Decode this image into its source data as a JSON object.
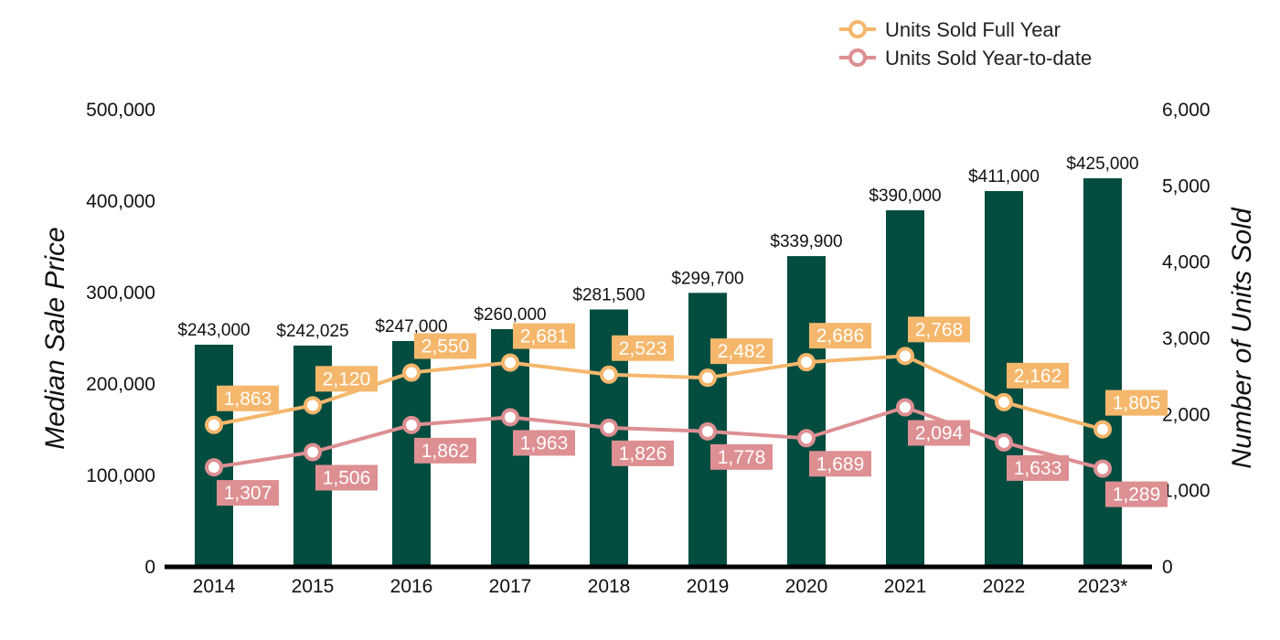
{
  "chart_data": {
    "type": "bar",
    "categories": [
      "2014",
      "2015",
      "2016",
      "2017",
      "2018",
      "2019",
      "2020",
      "2021",
      "2022",
      "2023*"
    ],
    "ylabel": "Median Sale Price",
    "y2label": "Number of Units Sold",
    "ylim": [
      0,
      500000
    ],
    "y2lim": [
      0,
      6000
    ],
    "yticks": [
      "0",
      "100,000",
      "200,000",
      "300,000",
      "400,000",
      "500,000"
    ],
    "y2ticks": [
      "0",
      "1,000",
      "2,000",
      "3,000",
      "4,000",
      "5,000",
      "6,000"
    ],
    "bars": {
      "values": [
        243000,
        242025,
        247000,
        260000,
        281500,
        299700,
        339900,
        390000,
        411000,
        425000
      ],
      "labels": [
        "$243,000",
        "$242,025",
        "$247,000",
        "$260,000",
        "$281,500",
        "$299,700",
        "$339,900",
        "$390,000",
        "$411,000",
        "$425,000"
      ],
      "color": "#024c40"
    },
    "series": [
      {
        "name": "Units Sold Full Year",
        "type": "line",
        "axis": "right",
        "color": "#f5b76c",
        "values": [
          1863,
          2120,
          2550,
          2681,
          2523,
          2482,
          2686,
          2768,
          2162,
          1805
        ],
        "labels": [
          "1,863",
          "2,120",
          "2,550",
          "2,681",
          "2,523",
          "2,482",
          "2,686",
          "2,768",
          "2,162",
          "1,805"
        ]
      },
      {
        "name": "Units Sold Year-to-date",
        "type": "line",
        "axis": "right",
        "color": "#dd8f92",
        "values": [
          1307,
          1506,
          1862,
          1963,
          1826,
          1778,
          1689,
          2094,
          1633,
          1289
        ],
        "labels": [
          "1,307",
          "1,506",
          "1,862",
          "1,963",
          "1,826",
          "1,778",
          "1,689",
          "2,094",
          "1,633",
          "1,289"
        ]
      }
    ],
    "legend": "top-right",
    "grid": false
  }
}
